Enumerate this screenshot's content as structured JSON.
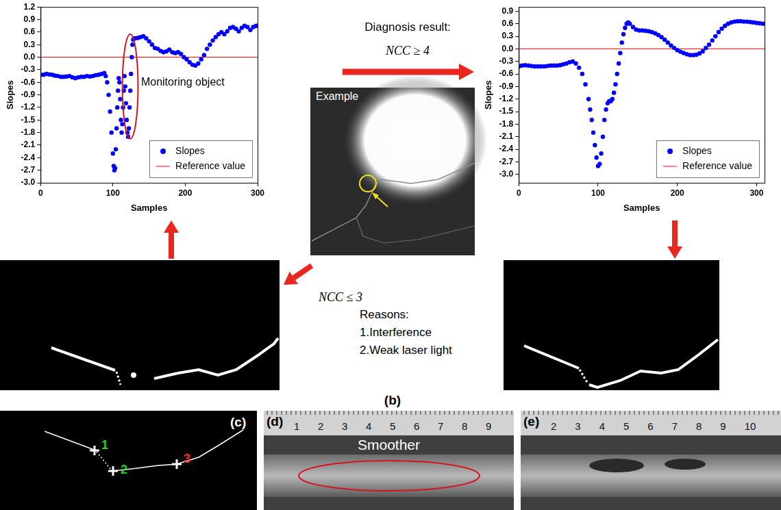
{
  "chart_data": [
    {
      "type": "scatter",
      "x_label": "Samples",
      "y_label": "Slopes",
      "xlim": [
        0,
        300
      ],
      "xticks": [
        0,
        100,
        200,
        300
      ],
      "ylim": [
        -3,
        1.2
      ],
      "yticks": [
        1.2,
        0.9,
        0.6,
        0.3,
        {
          "value": 0,
          "label": "0.0"
        },
        -0.3,
        -0.6,
        -0.9,
        -1.2,
        -1.5,
        -1.8,
        -2.1,
        -2.4,
        -2.7,
        {
          "value": -3,
          "label": "-3.0"
        }
      ],
      "grid": false,
      "legend": "lower right",
      "annotations": [
        {
          "text": "Monitoring object"
        }
      ],
      "series": [
        {
          "name": "Slopes",
          "color": "#0000ff",
          "marker": "circle",
          "x": [
            0,
            4,
            8,
            12,
            16,
            20,
            24,
            28,
            32,
            36,
            40,
            44,
            48,
            52,
            56,
            60,
            64,
            68,
            72,
            76,
            80,
            84,
            88,
            90,
            92,
            94,
            96,
            98,
            100,
            101,
            102,
            103,
            104,
            105,
            106,
            107,
            108,
            109,
            110,
            111,
            112,
            113,
            114,
            115,
            116,
            117,
            118,
            119,
            120,
            121,
            122,
            123,
            124,
            125,
            126,
            127,
            128,
            130,
            134,
            138,
            142,
            146,
            150,
            154,
            158,
            162,
            166,
            170,
            174,
            178,
            182,
            186,
            190,
            194,
            198,
            202,
            206,
            210,
            214,
            218,
            222,
            226,
            230,
            234,
            238,
            242,
            246,
            250,
            254,
            258,
            262,
            266,
            270,
            274,
            278,
            282,
            286,
            290,
            294,
            298,
            300
          ],
          "values": [
            -0.42,
            -0.42,
            -0.4,
            -0.41,
            -0.42,
            -0.44,
            -0.45,
            -0.47,
            -0.47,
            -0.46,
            -0.45,
            -0.48,
            -0.5,
            -0.48,
            -0.47,
            -0.47,
            -0.45,
            -0.46,
            -0.45,
            -0.43,
            -0.42,
            -0.4,
            -0.38,
            -0.45,
            -0.6,
            -0.9,
            -1.3,
            -1.8,
            -2.3,
            -2.6,
            -2.7,
            -2.65,
            -2.2,
            -1.7,
            -1.2,
            -0.8,
            -0.5,
            -0.6,
            -1.0,
            -1.5,
            -1.8,
            -1.6,
            -1.2,
            -0.8,
            -0.45,
            -0.7,
            -1.1,
            -1.5,
            -1.8,
            -1.9,
            -1.7,
            -1.2,
            -0.8,
            -0.4,
            0.0,
            0.3,
            0.42,
            0.45,
            0.46,
            0.48,
            0.5,
            0.45,
            0.38,
            0.3,
            0.22,
            0.2,
            0.15,
            0.12,
            0.14,
            0.18,
            0.12,
            0.1,
            0.12,
            0.08,
            0.0,
            -0.05,
            -0.12,
            -0.18,
            -0.2,
            -0.15,
            -0.05,
            0.05,
            0.2,
            0.3,
            0.4,
            0.48,
            0.55,
            0.6,
            0.55,
            0.62,
            0.7,
            0.72,
            0.68,
            0.62,
            0.7,
            0.75,
            0.72,
            0.65,
            0.72,
            0.75,
            0.75
          ]
        },
        {
          "name": "Reference value",
          "color": "#ff0000",
          "type": "line",
          "line_style": "solid",
          "x": [
            0,
            300
          ],
          "values": [
            0,
            0
          ]
        }
      ]
    },
    {
      "type": "scatter",
      "x_label": "Samples",
      "y_label": "Slopes",
      "xlim": [
        0,
        310
      ],
      "xticks": [
        0,
        100,
        200,
        300
      ],
      "ylim": [
        -3.2,
        1.0
      ],
      "yticks": [
        0.9,
        0.6,
        0.3,
        {
          "value": 0,
          "label": "0.0"
        },
        -0.3,
        -0.6,
        -0.9,
        -1.2,
        -1.5,
        -1.8,
        -2.1,
        -2.4,
        -2.7,
        {
          "value": -3,
          "label": "-3.0"
        }
      ],
      "grid": false,
      "legend": "lower right",
      "series": [
        {
          "name": "Slopes",
          "color": "#0000ff",
          "marker": "circle",
          "x": [
            0,
            4,
            8,
            12,
            16,
            20,
            24,
            28,
            32,
            36,
            40,
            44,
            48,
            52,
            56,
            60,
            64,
            68,
            72,
            76,
            80,
            84,
            88,
            90,
            92,
            94,
            96,
            98,
            100,
            102,
            104,
            106,
            108,
            110,
            112,
            114,
            116,
            118,
            120,
            122,
            124,
            126,
            128,
            130,
            132,
            134,
            136,
            138,
            140,
            144,
            148,
            152,
            156,
            160,
            164,
            168,
            172,
            176,
            180,
            184,
            188,
            192,
            196,
            200,
            204,
            208,
            212,
            216,
            220,
            224,
            228,
            232,
            236,
            240,
            244,
            248,
            252,
            256,
            260,
            264,
            268,
            272,
            276,
            280,
            284,
            288,
            292,
            296,
            300,
            304,
            308
          ],
          "values": [
            -0.42,
            -0.4,
            -0.39,
            -0.4,
            -0.41,
            -0.42,
            -0.42,
            -0.42,
            -0.42,
            -0.41,
            -0.4,
            -0.4,
            -0.4,
            -0.39,
            -0.37,
            -0.35,
            -0.32,
            -0.3,
            -0.35,
            -0.45,
            -0.6,
            -0.85,
            -1.2,
            -1.45,
            -1.7,
            -2.0,
            -2.3,
            -2.6,
            -2.8,
            -2.75,
            -2.5,
            -2.1,
            -1.7,
            -1.45,
            -1.3,
            -1.25,
            -1.25,
            -1.2,
            -1.05,
            -0.85,
            -0.6,
            -0.35,
            -0.1,
            0.15,
            0.35,
            0.5,
            0.6,
            0.63,
            0.6,
            0.52,
            0.46,
            0.44,
            0.44,
            0.43,
            0.42,
            0.4,
            0.37,
            0.33,
            0.28,
            0.22,
            0.15,
            0.08,
            0.02,
            -0.03,
            -0.07,
            -0.1,
            -0.13,
            -0.15,
            -0.15,
            -0.14,
            -0.11,
            -0.06,
            0.02,
            0.1,
            0.2,
            0.3,
            0.4,
            0.48,
            0.55,
            0.6,
            0.63,
            0.65,
            0.66,
            0.66,
            0.65,
            0.65,
            0.64,
            0.63,
            0.62,
            0.61,
            0.6
          ]
        },
        {
          "name": "Reference value",
          "color": "#ff0000",
          "type": "line",
          "line_style": "solid",
          "x": [
            0,
            310
          ],
          "values": [
            0,
            0
          ]
        }
      ]
    }
  ],
  "figure": {
    "diagnosis_title": "Diagnosis result:",
    "diagnosis_high": "NCC ≥ 4",
    "example": "Example",
    "diagnosis_low": "NCC ≤ 3",
    "reasons": [
      "Reasons:",
      "1.Interference",
      "2.Weak laser light"
    ],
    "panel_label": "(b)",
    "panels": [
      {
        "label": "(c)",
        "points": [
          "1",
          "2",
          "3"
        ]
      },
      {
        "label": "(d)",
        "annotation": "Smoother",
        "ruler": [
          1,
          2,
          3,
          4,
          5,
          6,
          7,
          8,
          9
        ]
      },
      {
        "label": "(e)",
        "ruler": [
          2,
          3,
          4,
          5,
          6,
          7,
          8,
          9,
          10
        ]
      }
    ]
  }
}
